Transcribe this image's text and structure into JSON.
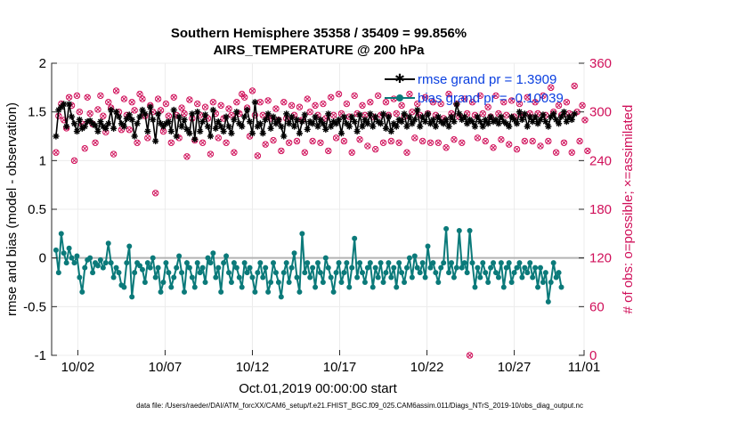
{
  "colors": {
    "rmse": "#000000",
    "bias": "#0b7a7a",
    "obs_possible": "#d0105a",
    "obs_assimilated": "#d0105a",
    "legend_text": "#0a3fe0",
    "right_axis": "#d0105a",
    "zero_line": "#b3b3b3"
  },
  "chart_data": {
    "type": "line",
    "title": "Southern Hemisphere 35358 / 35409 = 99.856%",
    "subtitle": "AIRS_TEMPERATURE @ 200 hPa",
    "xlabel": "Oct.01,2019 00:00:00 start",
    "ylabel_left": "rmse and bias (model - observation)",
    "ylabel_right": "# of obs: o=possible; ×=assimilated",
    "ylim_left": [
      -1,
      2
    ],
    "ylim_right": [
      0,
      360
    ],
    "xlim_days": [
      0.5,
      31
    ],
    "y_ticks_left": [
      "-1",
      "-0.5",
      "0",
      "0.5",
      "1",
      "1.5",
      "2"
    ],
    "y_ticks_right": [
      "0",
      "60",
      "120",
      "180",
      "240",
      "300",
      "360"
    ],
    "x_tick_labels": [
      "10/02",
      "10/07",
      "10/12",
      "10/17",
      "10/22",
      "10/27",
      "11/01"
    ],
    "x_tick_days": [
      2,
      7,
      12,
      17,
      22,
      27,
      32
    ],
    "grid": true,
    "legend": [
      {
        "name": "rmse grand pr = 1.3909",
        "marker": "star-line"
      },
      {
        "name": "bias grand pr = -0.10039",
        "marker": "dot-line"
      }
    ],
    "footnote": "data file: /Users/raeder/DAI/ATM_forcXX/CAM6_setup/f.e21.FHIST_BGC.f09_025.CAM6assim.011/Diags_NTrS_2019-10/obs_diag_output.nc",
    "series": [
      {
        "name": "rmse",
        "axis": "left",
        "values": [
          1.25,
          1.52,
          1.55,
          1.58,
          1.35,
          1.58,
          1.45,
          1.38,
          1.3,
          1.42,
          1.33,
          1.35,
          1.4,
          1.41,
          1.38,
          1.36,
          1.3,
          1.4,
          1.35,
          1.33,
          1.38,
          1.52,
          1.33,
          1.5,
          1.45,
          1.38,
          1.35,
          1.43,
          1.47,
          1.42,
          1.25,
          1.38,
          1.45,
          1.52,
          1.48,
          1.3,
          1.55,
          1.42,
          1.2,
          1.48,
          1.38,
          1.35,
          1.38,
          1.4,
          1.3,
          1.52,
          1.25,
          1.45,
          1.35,
          1.42,
          1.32,
          1.28,
          1.48,
          1.22,
          1.5,
          1.3,
          1.4,
          1.47,
          1.35,
          1.25,
          1.52,
          1.33,
          1.4,
          1.35,
          1.3,
          1.45,
          1.35,
          1.28,
          1.42,
          1.5,
          1.38,
          1.35,
          1.45,
          1.52,
          1.4,
          1.28,
          1.6,
          1.35,
          1.38,
          1.28,
          1.42,
          1.48,
          1.33,
          1.45,
          1.38,
          1.42,
          1.35,
          1.25,
          1.48,
          1.38,
          1.45,
          1.35,
          1.42,
          1.28,
          1.4,
          1.47,
          1.32,
          1.4,
          1.38,
          1.45,
          1.35,
          1.42,
          1.38,
          1.32,
          1.48,
          1.35,
          1.4,
          1.38,
          1.42,
          1.28,
          1.45,
          1.38,
          1.35,
          1.45,
          1.4,
          1.3,
          1.47,
          1.35,
          1.42,
          1.38,
          1.48,
          1.35,
          1.45,
          1.4,
          1.38,
          1.48,
          1.33,
          1.45,
          1.3,
          1.38,
          1.35,
          1.42,
          1.4,
          1.48,
          1.35,
          1.45,
          1.38,
          1.42,
          1.52,
          1.35,
          1.45,
          1.4,
          1.48,
          1.38,
          1.42,
          1.35,
          1.45,
          1.4,
          1.38,
          1.42,
          1.35,
          1.45,
          1.4,
          1.58,
          1.48,
          1.42,
          1.45,
          1.38,
          1.42,
          1.4,
          1.35,
          1.45,
          1.4,
          1.35,
          1.42,
          1.38,
          1.45,
          1.4,
          1.42,
          1.38,
          1.45,
          1.4,
          1.38,
          1.35,
          1.45,
          1.42,
          1.38,
          1.5,
          1.42,
          1.48,
          1.35,
          1.45,
          1.4,
          1.45,
          1.38,
          1.42,
          1.47,
          1.4,
          1.35,
          1.45,
          1.48,
          1.42,
          1.38,
          1.45,
          1.5,
          1.4,
          1.45,
          1.42,
          1.48
        ]
      },
      {
        "name": "bias",
        "axis": "left",
        "values": [
          0.08,
          -0.15,
          0.25,
          0.05,
          -0.05,
          0.1,
          0.0,
          -0.05,
          0.02,
          -0.2,
          -0.35,
          -0.1,
          -0.02,
          0.0,
          -0.15,
          -0.05,
          -0.08,
          -0.02,
          -0.1,
          -0.05,
          0.15,
          -0.05,
          -0.2,
          -0.1,
          -0.15,
          -0.28,
          -0.3,
          -0.05,
          0.12,
          -0.4,
          -0.15,
          -0.05,
          -0.08,
          -0.12,
          -0.25,
          -0.05,
          -0.1,
          0.0,
          -0.2,
          -0.1,
          -0.35,
          -0.25,
          -0.05,
          -0.15,
          -0.3,
          -0.2,
          -0.1,
          0.02,
          -0.15,
          -0.35,
          -0.05,
          -0.1,
          -0.2,
          -0.3,
          -0.05,
          -0.15,
          -0.1,
          -0.25,
          0.0,
          -0.05,
          0.05,
          -0.2,
          -0.1,
          -0.35,
          -0.05,
          0.02,
          -0.15,
          -0.25,
          -0.05,
          -0.1,
          -0.2,
          -0.3,
          -0.05,
          -0.15,
          -0.1,
          -0.2,
          -0.35,
          -0.15,
          -0.05,
          -0.2,
          -0.1,
          -0.35,
          -0.25,
          -0.05,
          -0.15,
          -0.25,
          -0.4,
          -0.15,
          -0.05,
          -0.25,
          -0.1,
          0.05,
          -0.2,
          -0.35,
          0.25,
          -0.15,
          -0.05,
          -0.2,
          -0.1,
          -0.3,
          -0.05,
          -0.15,
          -0.25,
          0.0,
          -0.1,
          -0.2,
          -0.35,
          -0.15,
          -0.05,
          -0.25,
          -0.15,
          -0.05,
          -0.3,
          -0.1,
          0.2,
          -0.2,
          -0.05,
          -0.15,
          -0.25,
          -0.1,
          -0.05,
          -0.3,
          -0.1,
          -0.2,
          -0.05,
          -0.25,
          -0.15,
          -0.05,
          -0.2,
          -0.1,
          -0.3,
          -0.05,
          -0.15,
          -0.25,
          -0.1,
          0.0,
          -0.2,
          0.02,
          -0.1,
          -0.15,
          -0.05,
          -0.2,
          0.12,
          -0.1,
          -0.05,
          -0.15,
          -0.25,
          -0.1,
          -0.05,
          0.3,
          -0.15,
          -0.05,
          -0.2,
          -0.1,
          0.28,
          -0.1,
          -0.05,
          -0.15,
          0.28,
          -0.05,
          -0.3,
          -0.1,
          -0.2,
          -0.05,
          -0.15,
          -0.25,
          -0.1,
          -0.05,
          -0.15,
          -0.2,
          -0.05,
          -0.3,
          -0.1,
          -0.05,
          -0.25,
          -0.15,
          -0.1,
          -0.05,
          -0.2,
          -0.1,
          -0.15,
          -0.05,
          -0.2,
          -0.1,
          -0.3,
          -0.1,
          -0.25,
          -0.15,
          -0.45,
          -0.25,
          -0.05,
          -0.2,
          -0.15,
          -0.3
        ]
      },
      {
        "name": "obs_count",
        "axis": "right",
        "values": [
          250,
          295,
          310,
          290,
          280,
          318,
          308,
          240,
          320,
          300,
          285,
          255,
          318,
          298,
          285,
          262,
          303,
          320,
          295,
          275,
          312,
          305,
          248,
          326,
          300,
          278,
          316,
          296,
          278,
          312,
          302,
          262,
          322,
          316,
          295,
          268,
          308,
          300,
          200,
          316,
          302,
          276,
          310,
          295,
          262,
          318,
          296,
          268,
          305,
          298,
          245,
          315,
          292,
          265,
          310,
          296,
          262,
          306,
          292,
          248,
          312,
          298,
          268,
          308,
          292,
          262,
          304,
          296,
          250,
          312,
          298,
          322,
          318,
          305,
          270,
          326,
          296,
          246,
          312,
          296,
          260,
          314,
          292,
          265,
          304,
          290,
          252,
          312,
          292,
          262,
          308,
          296,
          264,
          306,
          290,
          250,
          316,
          300,
          264,
          308,
          296,
          262,
          310,
          292,
          252,
          318,
          296,
          268,
          322,
          298,
          264,
          310,
          294,
          250,
          320,
          298,
          266,
          308,
          296,
          258,
          312,
          294,
          254,
          320,
          296,
          262,
          312,
          296,
          264,
          316,
          298,
          262,
          308,
          294,
          250,
          322,
          300,
          268,
          310,
          296,
          264,
          318,
          298,
          262,
          312,
          296,
          262,
          310,
          292,
          256,
          322,
          298,
          266,
          310,
          294,
          262,
          316,
          298,
          0,
          312,
          296,
          268,
          320,
          298,
          264,
          306,
          294,
          256,
          320,
          298,
          266,
          312,
          296,
          260,
          314,
          294,
          254,
          310,
          296,
          264,
          318,
          298,
          264,
          312,
          298,
          258,
          320,
          296,
          264,
          330,
          300,
          250,
          308,
          296,
          262,
          312,
          298,
          250,
          332,
          300,
          264,
          308,
          290,
          252
        ]
      }
    ]
  }
}
